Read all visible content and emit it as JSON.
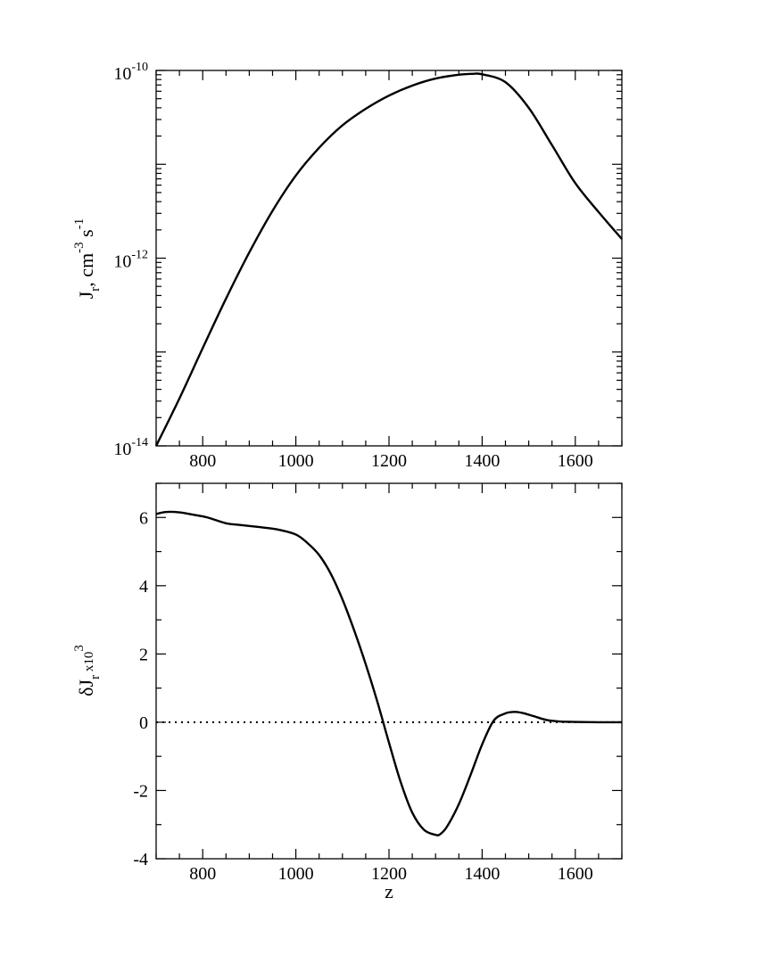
{
  "chart_data": [
    {
      "type": "line",
      "ylog": true,
      "xlim": [
        700,
        1700
      ],
      "ylim": [
        1e-14,
        1e-10
      ],
      "x_ticks": [
        800,
        1000,
        1200,
        1400,
        1600
      ],
      "x_tick_labels": [
        "800",
        "1000",
        "1200",
        "1400",
        "1600"
      ],
      "y_ticks": [
        1e-14,
        1e-12,
        1e-10
      ],
      "y_tick_labels": [
        {
          "base": "10",
          "exp": "-14"
        },
        {
          "base": "10",
          "exp": "-12"
        },
        {
          "base": "10",
          "exp": "-10"
        }
      ],
      "ylabel": {
        "main": "J",
        "sub": "r",
        "mid": ", cm",
        "sup1": "-3",
        "s": " s",
        "sup2": "-1"
      },
      "series": [
        {
          "x": [
            700,
            750,
            800,
            850,
            900,
            950,
            1000,
            1050,
            1100,
            1150,
            1200,
            1250,
            1300,
            1350,
            1380,
            1400,
            1450,
            1500,
            1550,
            1600,
            1650,
            1700
          ],
          "y": [
            1e-14,
            3.2e-14,
            1.1e-13,
            3.7e-13,
            1.15e-12,
            3.2e-12,
            7.6e-12,
            1.5e-11,
            2.6e-11,
            3.9e-11,
            5.4e-11,
            6.9e-11,
            8.2e-11,
            9e-11,
            9.2e-11,
            9.1e-11,
            7.5e-11,
            4e-11,
            1.6e-11,
            6.3e-12,
            3.1e-12,
            1.6e-12
          ]
        }
      ]
    },
    {
      "type": "line",
      "xlim": [
        700,
        1700
      ],
      "ylim": [
        -4,
        7
      ],
      "x_ticks": [
        800,
        1000,
        1200,
        1400,
        1600
      ],
      "x_tick_labels": [
        "800",
        "1000",
        "1200",
        "1400",
        "1600"
      ],
      "y_ticks": [
        -4,
        -2,
        0,
        2,
        4,
        6
      ],
      "y_tick_labels": [
        "-4",
        "-2",
        "0",
        "2",
        "4",
        "6"
      ],
      "xlabel": "z",
      "ylabel": {
        "main": "δJ",
        "sub": "r",
        "mid": " x10",
        "sup": "3"
      },
      "reference_line": {
        "y": 0,
        "style": "dotted"
      },
      "series": [
        {
          "x": [
            700,
            720,
            750,
            780,
            810,
            850,
            880,
            920,
            960,
            1000,
            1025,
            1050,
            1075,
            1100,
            1125,
            1150,
            1175,
            1200,
            1225,
            1250,
            1275,
            1300,
            1310,
            1325,
            1350,
            1375,
            1400,
            1425,
            1450,
            1465,
            1475,
            1490,
            1510,
            1540,
            1570,
            1600,
            1650,
            1700
          ],
          "y": [
            6.1,
            6.16,
            6.15,
            6.08,
            6.0,
            5.83,
            5.78,
            5.72,
            5.65,
            5.5,
            5.25,
            4.9,
            4.35,
            3.6,
            2.7,
            1.7,
            0.6,
            -0.6,
            -1.75,
            -2.65,
            -3.15,
            -3.3,
            -3.28,
            -3.05,
            -2.4,
            -1.55,
            -0.65,
            0.05,
            0.26,
            0.3,
            0.3,
            0.26,
            0.18,
            0.06,
            0.02,
            0.01,
            0.0,
            0.0
          ]
        }
      ]
    }
  ]
}
